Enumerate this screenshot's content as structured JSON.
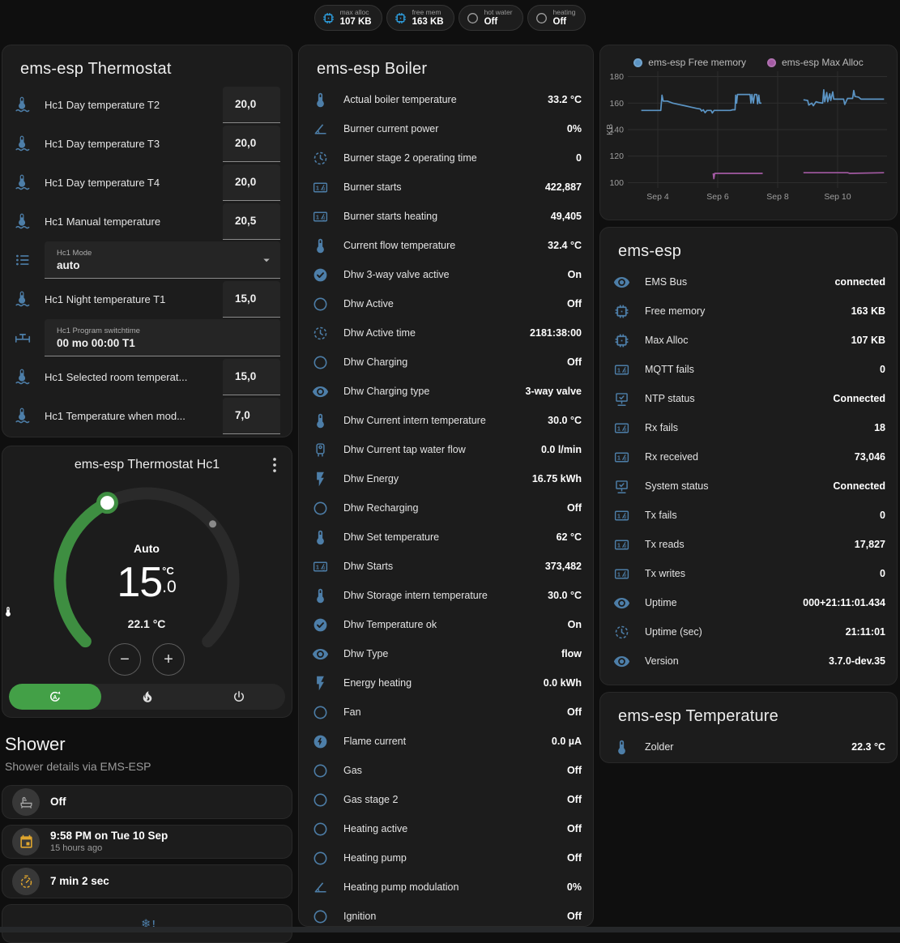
{
  "colors": {
    "accent_green": "#43a047",
    "arc_green": "#3e8e41",
    "entity_blue": "#4d7ea8",
    "badge_blue": "#2d9cdb",
    "amber": "#e0a62e",
    "chart_blue": "#5b94c4",
    "chart_purple": "#a35aa3"
  },
  "badges": [
    {
      "label": "max alloc",
      "value": "107 KB",
      "icon": "chip",
      "color": "#2d9cdb"
    },
    {
      "label": "free mem",
      "value": "163 KB",
      "icon": "chip",
      "color": "#2d9cdb"
    },
    {
      "label": "hot water",
      "value": "Off",
      "icon": "circle",
      "color": "#9e9e9e"
    },
    {
      "label": "heating",
      "value": "Off",
      "icon": "circle",
      "color": "#9e9e9e"
    }
  ],
  "thermostat_card": {
    "title": "ems-esp Thermostat",
    "rows": [
      {
        "type": "number",
        "icon": "thermometer-water",
        "label": "Hc1 Day temperature T2",
        "value": "20,0"
      },
      {
        "type": "number",
        "icon": "thermometer-water",
        "label": "Hc1 Day temperature T3",
        "value": "20,0"
      },
      {
        "type": "number",
        "icon": "thermometer-water",
        "label": "Hc1 Day temperature T4",
        "value": "20,0"
      },
      {
        "type": "number",
        "icon": "thermometer-water",
        "label": "Hc1 Manual temperature",
        "value": "20,5"
      },
      {
        "type": "select",
        "icon": "format-list",
        "label": "Hc1 Mode",
        "value": "auto"
      },
      {
        "type": "number",
        "icon": "thermometer-water",
        "label": "Hc1 Night temperature T1",
        "value": "15,0"
      },
      {
        "type": "text",
        "icon": "pipe-valve",
        "label": "Hc1 Program switchtime",
        "value": "00 mo 00:00 T1"
      },
      {
        "type": "number",
        "icon": "thermometer-water",
        "label": "Hc1 Selected room temperat...",
        "value": "15,0"
      },
      {
        "type": "number",
        "icon": "thermometer-water",
        "label": "Hc1 Temperature when mod...",
        "value": "7,0"
      }
    ]
  },
  "dial_card": {
    "title": "ems-esp Thermostat Hc1",
    "mode_label": "Auto",
    "target_display": "15",
    "target_decimal": ".0",
    "unit": "°C",
    "current_display": "22.1 °C",
    "min": 5,
    "max": 30,
    "target": 15,
    "current": 22.1,
    "modes": [
      {
        "icon": "auto",
        "active": true
      },
      {
        "icon": "flame",
        "active": false
      },
      {
        "icon": "power",
        "active": false
      }
    ]
  },
  "shower": {
    "title": "Shower",
    "subtitle": "Shower details via EMS-ESP",
    "items": [
      {
        "icon": "bathtub",
        "tone": "gray",
        "value": "Off",
        "sub": ""
      },
      {
        "icon": "calendar",
        "tone": "amber",
        "value": "9:58 PM on Tue 10 Sep",
        "sub": "15 hours ago"
      },
      {
        "icon": "timer",
        "tone": "amber",
        "value": "7 min 2 sec",
        "sub": ""
      },
      {
        "icon": "snowflake-alert",
        "tone": "blue",
        "value": "",
        "sub": "",
        "centered": true
      }
    ]
  },
  "boiler_card": {
    "title": "ems-esp Boiler",
    "rows": [
      {
        "icon": "thermometer",
        "label": "Actual boiler temperature",
        "value": "33.2 °C"
      },
      {
        "icon": "angle",
        "label": "Burner current power",
        "value": "0%"
      },
      {
        "icon": "clock",
        "label": "Burner stage 2 operating time",
        "value": "0"
      },
      {
        "icon": "counter",
        "label": "Burner starts",
        "value": "422,887"
      },
      {
        "icon": "counter",
        "label": "Burner starts heating",
        "value": "49,405"
      },
      {
        "icon": "thermometer",
        "label": "Current flow temperature",
        "value": "32.4 °C"
      },
      {
        "icon": "check-circle",
        "label": "Dhw 3-way valve active",
        "value": "On"
      },
      {
        "icon": "circle",
        "label": "Dhw Active",
        "value": "Off"
      },
      {
        "icon": "clock",
        "label": "Dhw Active time",
        "value": "2181:38:00"
      },
      {
        "icon": "circle",
        "label": "Dhw Charging",
        "value": "Off"
      },
      {
        "icon": "eye",
        "label": "Dhw Charging type",
        "value": "3-way valve"
      },
      {
        "icon": "thermometer",
        "label": "Dhw Current intern temperature",
        "value": "30.0 °C"
      },
      {
        "icon": "water-heater",
        "label": "Dhw Current tap water flow",
        "value": "0.0 l/min"
      },
      {
        "icon": "flash",
        "label": "Dhw Energy",
        "value": "16.75 kWh"
      },
      {
        "icon": "circle",
        "label": "Dhw Recharging",
        "value": "Off"
      },
      {
        "icon": "thermometer",
        "label": "Dhw Set temperature",
        "value": "62 °C"
      },
      {
        "icon": "counter",
        "label": "Dhw Starts",
        "value": "373,482"
      },
      {
        "icon": "thermometer",
        "label": "Dhw Storage intern temperature",
        "value": "30.0 °C"
      },
      {
        "icon": "check-circle",
        "label": "Dhw Temperature ok",
        "value": "On"
      },
      {
        "icon": "eye",
        "label": "Dhw Type",
        "value": "flow"
      },
      {
        "icon": "flash",
        "label": "Energy heating",
        "value": "0.0 kWh"
      },
      {
        "icon": "circle",
        "label": "Fan",
        "value": "Off"
      },
      {
        "icon": "flash-circle",
        "label": "Flame current",
        "value": "0.0 µA"
      },
      {
        "icon": "circle",
        "label": "Gas",
        "value": "Off"
      },
      {
        "icon": "circle",
        "label": "Gas stage 2",
        "value": "Off"
      },
      {
        "icon": "circle",
        "label": "Heating active",
        "value": "Off"
      },
      {
        "icon": "circle",
        "label": "Heating pump",
        "value": "Off"
      },
      {
        "icon": "angle",
        "label": "Heating pump modulation",
        "value": "0%"
      },
      {
        "icon": "circle",
        "label": "Ignition",
        "value": "Off"
      }
    ]
  },
  "emsesp_card": {
    "title": "ems-esp",
    "rows": [
      {
        "icon": "eye",
        "label": "EMS Bus",
        "value": "connected"
      },
      {
        "icon": "chip",
        "label": "Free memory",
        "value": "163 KB"
      },
      {
        "icon": "chip",
        "label": "Max Alloc",
        "value": "107 KB"
      },
      {
        "icon": "counter",
        "label": "MQTT fails",
        "value": "0"
      },
      {
        "icon": "network",
        "label": "NTP status",
        "value": "Connected"
      },
      {
        "icon": "counter",
        "label": "Rx fails",
        "value": "18"
      },
      {
        "icon": "counter",
        "label": "Rx received",
        "value": "73,046"
      },
      {
        "icon": "network",
        "label": "System status",
        "value": "Connected"
      },
      {
        "icon": "counter",
        "label": "Tx fails",
        "value": "0"
      },
      {
        "icon": "counter",
        "label": "Tx reads",
        "value": "17,827"
      },
      {
        "icon": "counter",
        "label": "Tx writes",
        "value": "0"
      },
      {
        "icon": "eye",
        "label": "Uptime",
        "value": "000+21:11:01.434"
      },
      {
        "icon": "clock",
        "label": "Uptime (sec)",
        "value": "21:11:01"
      },
      {
        "icon": "eye",
        "label": "Version",
        "value": "3.7.0-dev.35"
      }
    ]
  },
  "temperature_card": {
    "title": "ems-esp Temperature",
    "rows": [
      {
        "icon": "thermometer",
        "label": "Zolder",
        "value": "22.3 °C"
      }
    ]
  },
  "chart_data": {
    "type": "line",
    "ylabel": "KB",
    "ylim": [
      96,
      184
    ],
    "yticks": [
      100,
      120,
      140,
      160,
      180
    ],
    "xticks": [
      {
        "x": 4,
        "label": "Sep 4"
      },
      {
        "x": 6,
        "label": "Sep 6"
      },
      {
        "x": 8,
        "label": "Sep 8"
      },
      {
        "x": 10,
        "label": "Sep 10"
      }
    ],
    "xlim": [
      3.0,
      11.65
    ],
    "grid": true,
    "legend_position": "top",
    "series": [
      {
        "name": "ems-esp Free memory",
        "color": "#5b94c4",
        "segments": [
          [
            [
              3.45,
              154.5
            ],
            [
              4.1,
              154.5
            ],
            [
              4.14,
              166
            ],
            [
              4.18,
              161.5
            ],
            [
              4.32,
              161.5
            ],
            [
              4.5,
              160
            ],
            [
              4.7,
              159
            ],
            [
              4.9,
              158
            ],
            [
              5.1,
              157
            ],
            [
              5.3,
              156
            ],
            [
              5.42,
              155.5
            ],
            [
              5.46,
              154
            ],
            [
              5.52,
              155
            ],
            [
              5.58,
              152.8
            ],
            [
              5.64,
              154.5
            ],
            [
              5.78,
              154.5
            ],
            [
              5.82,
              152.5
            ],
            [
              5.88,
              154.5
            ],
            [
              6.42,
              154.5
            ],
            [
              6.5,
              155
            ],
            [
              6.58,
              155
            ],
            [
              6.6,
              166
            ],
            [
              6.63,
              160
            ],
            [
              6.66,
              166.5
            ],
            [
              7.08,
              166.5
            ],
            [
              7.11,
              160
            ],
            [
              7.14,
              166.5
            ],
            [
              7.19,
              160
            ],
            [
              7.23,
              166.5
            ],
            [
              7.3,
              166.5
            ],
            [
              7.33,
              159.5
            ],
            [
              7.37,
              166
            ],
            [
              7.4,
              160
            ],
            [
              7.46,
              160
            ]
          ],
          [
            [
              8.86,
              162.5
            ],
            [
              9.0,
              162
            ],
            [
              9.04,
              158.5
            ],
            [
              9.14,
              160
            ],
            [
              9.19,
              158
            ],
            [
              9.28,
              161
            ],
            [
              9.36,
              160.5
            ],
            [
              9.5,
              160
            ],
            [
              9.54,
              170
            ],
            [
              9.57,
              161
            ],
            [
              9.64,
              168
            ],
            [
              9.67,
              161
            ],
            [
              9.74,
              167
            ],
            [
              9.77,
              162
            ],
            [
              9.84,
              168.5
            ],
            [
              9.87,
              163
            ],
            [
              10.05,
              163
            ],
            [
              10.2,
              163
            ],
            [
              10.24,
              159
            ],
            [
              10.33,
              163.5
            ],
            [
              10.5,
              163.5
            ],
            [
              10.54,
              169.5
            ],
            [
              10.58,
              165
            ],
            [
              10.7,
              164.5
            ],
            [
              10.78,
              163
            ],
            [
              11.55,
              163
            ]
          ]
        ]
      },
      {
        "name": "ems-esp Max Alloc",
        "color": "#a35aa3",
        "segments": [
          [
            [
              5.85,
              107
            ],
            [
              5.87,
              103
            ],
            [
              5.9,
              107
            ],
            [
              7.5,
              107
            ]
          ],
          [
            [
              8.86,
              107.5
            ],
            [
              10.34,
              107.5
            ],
            [
              10.4,
              107
            ],
            [
              11.55,
              107.5
            ]
          ]
        ]
      }
    ]
  }
}
